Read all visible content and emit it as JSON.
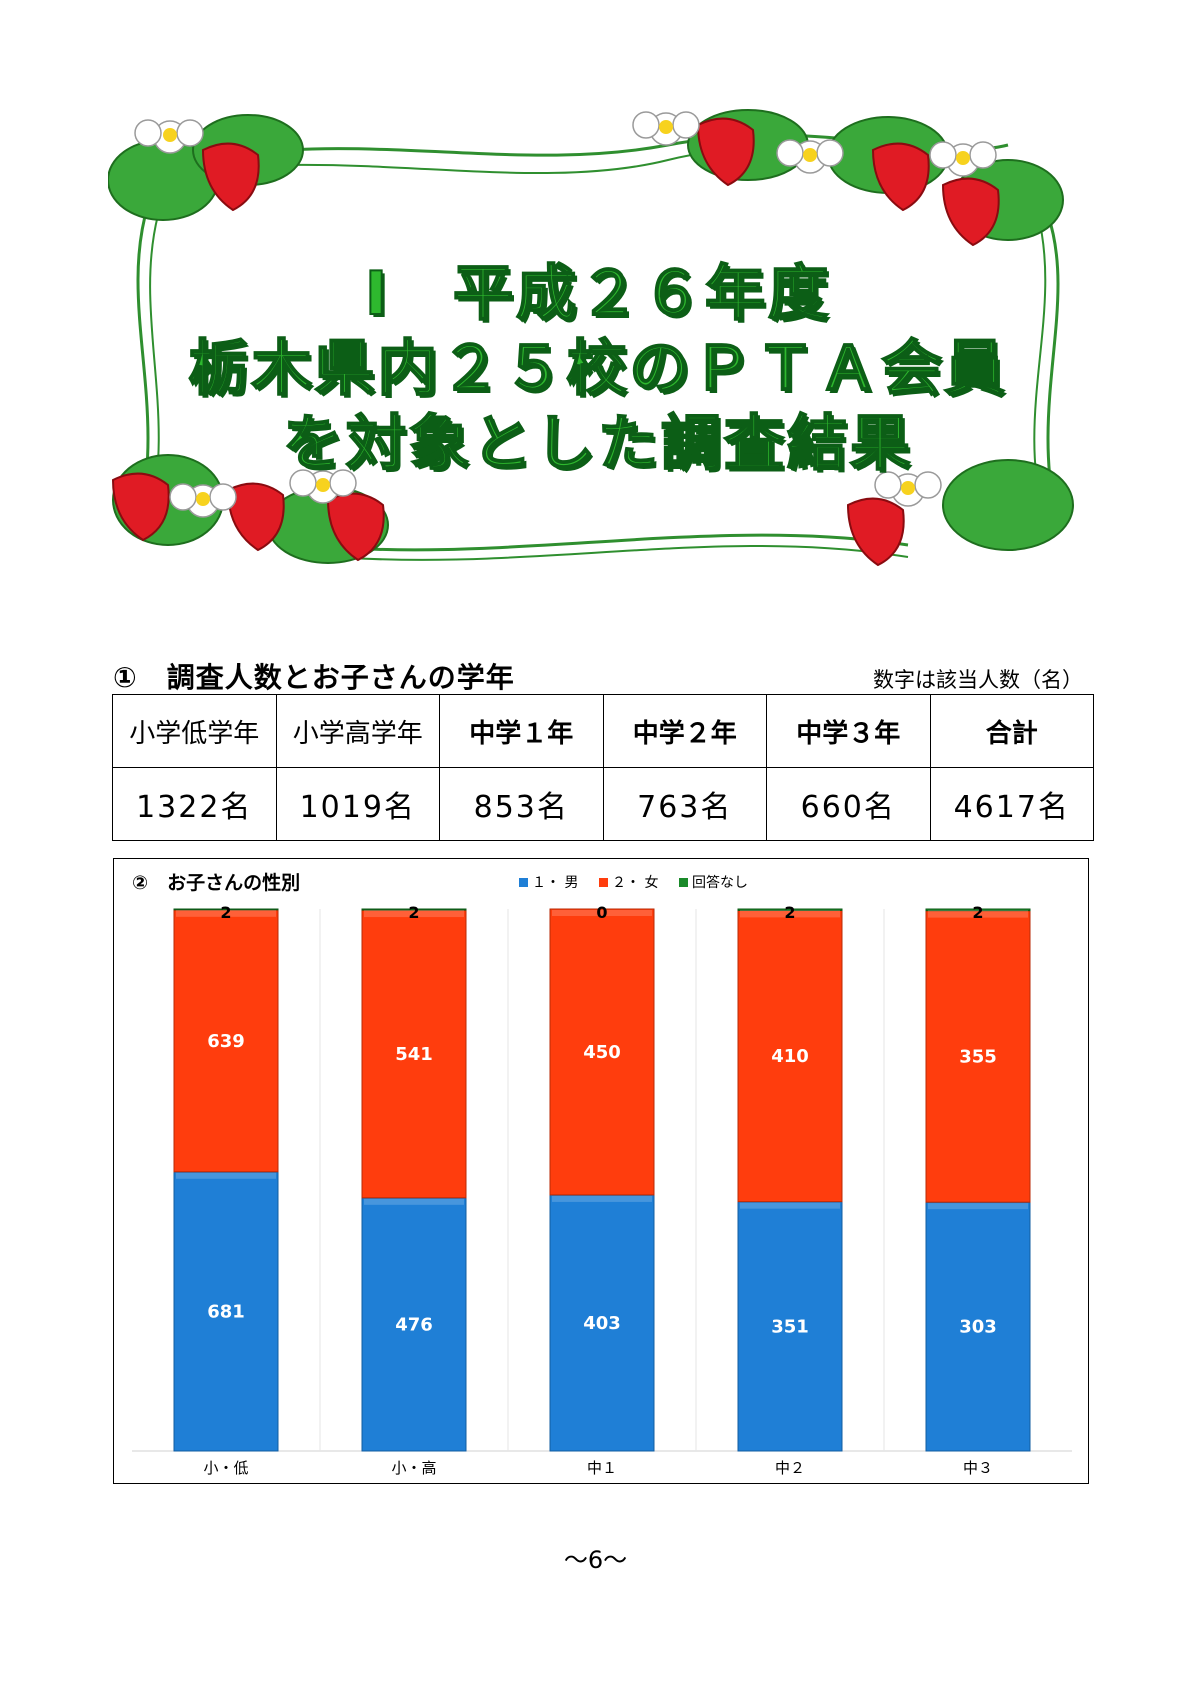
{
  "banner": {
    "title_lines": [
      "Ⅰ　平成２６年度",
      "栃木県内２５校のＰＴＡ会員",
      "を対象とした調査結果"
    ]
  },
  "section1": {
    "heading": "①　調査人数とお子さんの学年",
    "note": "数字は該当人数（名）",
    "headers": [
      "小学低学年",
      "小学高学年",
      "中学１年",
      "中学２年",
      "中学３年",
      "合計"
    ],
    "values": [
      "1322名",
      "1019名",
      "853名",
      "763名",
      "660名",
      "4617名"
    ]
  },
  "section2": {
    "chart_data": {
      "type": "bar",
      "stacked": true,
      "title": "②　お子さんの性別",
      "categories": [
        "小・低",
        "小・高",
        "中１",
        "中２",
        "中３"
      ],
      "series": [
        {
          "name": "１・ 男",
          "values": [
            681,
            476,
            403,
            351,
            303
          ],
          "color": "#1f7fd6"
        },
        {
          "name": "２・ 女",
          "values": [
            639,
            541,
            450,
            410,
            355
          ],
          "color": "#ff3d0d"
        },
        {
          "name": "回答なし",
          "values": [
            2,
            2,
            0,
            2,
            2
          ],
          "color": "#1a8a2a"
        }
      ],
      "legend_position": "top",
      "grid": false,
      "normalized": true
    }
  },
  "footer": {
    "page_number": "～6～"
  }
}
